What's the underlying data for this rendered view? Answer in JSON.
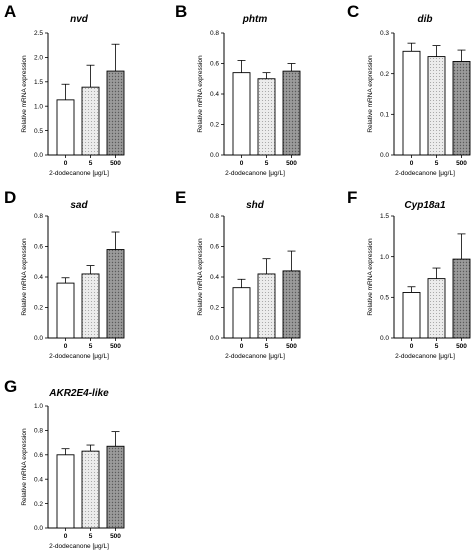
{
  "chart_data": [
    {
      "type": "bar",
      "panel": "A",
      "title": "nvd",
      "xlabel": "2-dodecanone [μg/L]",
      "ylabel": "Relative mRNA expression",
      "categories": [
        "0",
        "5",
        "500"
      ],
      "values": [
        1.13,
        1.39,
        1.72
      ],
      "errors": [
        0.32,
        0.45,
        0.55
      ],
      "ylim": [
        0,
        2.5
      ],
      "yticks": [
        "0.0",
        "0.5",
        "1.0",
        "1.5",
        "2.0",
        "2.5"
      ]
    },
    {
      "type": "bar",
      "panel": "B",
      "title": "phtm",
      "xlabel": "2-dodecanone [μg/L]",
      "ylabel": "Relative mRNA expression",
      "categories": [
        "0",
        "5",
        "500"
      ],
      "values": [
        0.54,
        0.5,
        0.55
      ],
      "errors": [
        0.08,
        0.04,
        0.05
      ],
      "ylim": [
        0,
        0.8
      ],
      "yticks": [
        "0.0",
        "0.2",
        "0.4",
        "0.6",
        "0.8"
      ]
    },
    {
      "type": "bar",
      "panel": "C",
      "title": "dib",
      "xlabel": "2-dodecanone [μg/L]",
      "ylabel": "Relative mRNA expression",
      "categories": [
        "0",
        "5",
        "500"
      ],
      "values": [
        0.255,
        0.242,
        0.23
      ],
      "errors": [
        0.02,
        0.027,
        0.028
      ],
      "ylim": [
        0,
        0.3
      ],
      "yticks": [
        "0.0",
        "0.1",
        "0.2",
        "0.3"
      ]
    },
    {
      "type": "bar",
      "panel": "D",
      "title": "sad",
      "xlabel": "2-dodecanone [μg/L]",
      "ylabel": "Relative mRNA expression",
      "categories": [
        "0",
        "5",
        "500"
      ],
      "values": [
        0.36,
        0.42,
        0.58
      ],
      "errors": [
        0.035,
        0.055,
        0.115
      ],
      "ylim": [
        0,
        0.8
      ],
      "yticks": [
        "0.0",
        "0.2",
        "0.4",
        "0.6",
        "0.8"
      ]
    },
    {
      "type": "bar",
      "panel": "E",
      "title": "shd",
      "xlabel": "2-dodecanone [μg/L]",
      "ylabel": "Relative mRNA expression",
      "categories": [
        "0",
        "5",
        "500"
      ],
      "values": [
        0.33,
        0.42,
        0.44
      ],
      "errors": [
        0.055,
        0.1,
        0.13
      ],
      "ylim": [
        0,
        0.8
      ],
      "yticks": [
        "0.0",
        "0.2",
        "0.4",
        "0.6",
        "0.8"
      ]
    },
    {
      "type": "bar",
      "panel": "F",
      "title": "Cyp18a1",
      "xlabel": "2-dodecanone [μg/L]",
      "ylabel": "Relative mRNA expression",
      "categories": [
        "0",
        "5",
        "500"
      ],
      "values": [
        0.56,
        0.73,
        0.97
      ],
      "errors": [
        0.07,
        0.13,
        0.31
      ],
      "ylim": [
        0,
        1.5
      ],
      "yticks": [
        "0.0",
        "0.5",
        "1.0",
        "1.5"
      ]
    },
    {
      "type": "bar",
      "panel": "G",
      "title": "AKR2E4-like",
      "xlabel": "2-dodecanone [μg/L]",
      "ylabel": "Relative mRNA expression",
      "categories": [
        "0",
        "5",
        "500"
      ],
      "values": [
        0.6,
        0.63,
        0.67
      ],
      "errors": [
        0.05,
        0.05,
        0.12
      ],
      "ylim": [
        0,
        1.0
      ],
      "yticks": [
        "0.0",
        "0.2",
        "0.4",
        "0.6",
        "0.8",
        "1.0"
      ]
    }
  ],
  "bar_styles": [
    {
      "fill": "#ffffff",
      "pattern": "none"
    },
    {
      "fill": "#e6e6e6",
      "pattern": "light-dots"
    },
    {
      "fill": "#8f8f8f",
      "pattern": "dark-dots"
    }
  ],
  "colors": {
    "axis": "#000000",
    "background": "#ffffff"
  }
}
